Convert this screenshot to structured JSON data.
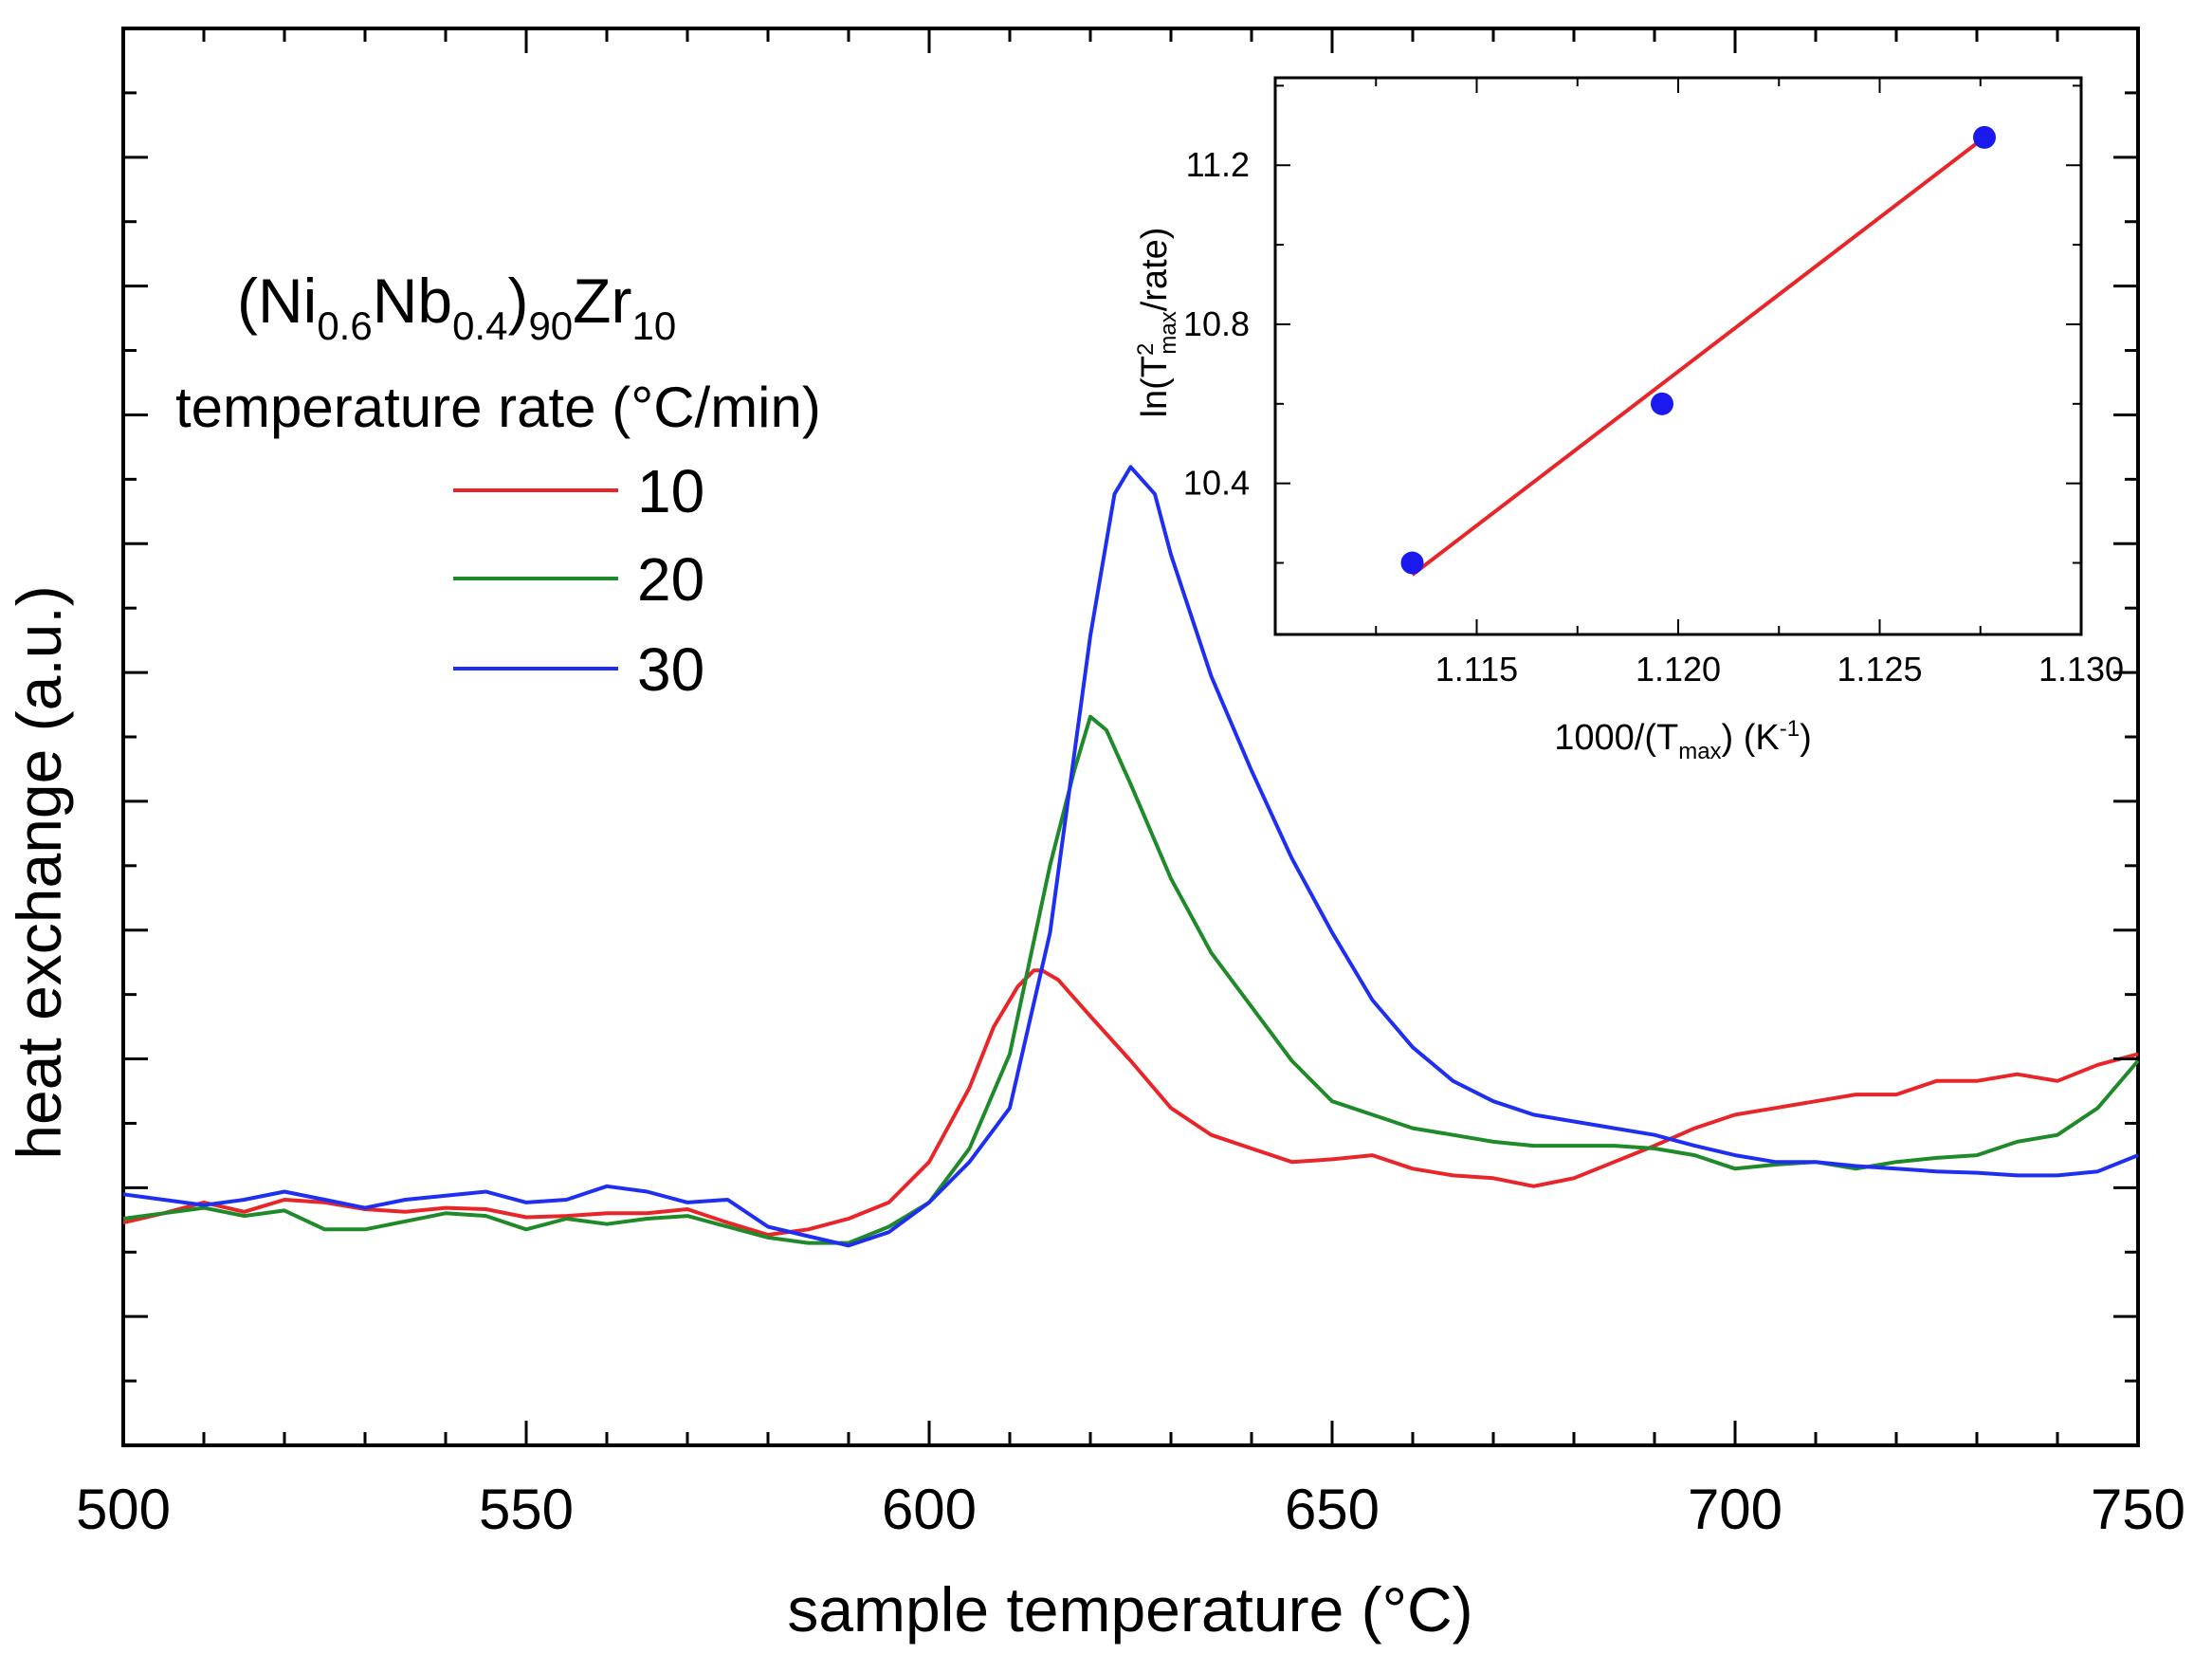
{
  "chart_data": [
    {
      "type": "line",
      "title": "",
      "xlabel": "sample temperature (°C)",
      "ylabel": "heat exchange (a.u.)",
      "xlim": [
        500,
        750
      ],
      "ylim": [
        -0.05,
        1.0
      ],
      "x_ticks": [
        500,
        550,
        600,
        650,
        700,
        750
      ],
      "x_tick_labels": [
        "500",
        "550",
        "600",
        "650",
        "700",
        "750"
      ],
      "y_tick_labels_shown": false,
      "legend": {
        "placement": "top-left",
        "composition": {
          "base1": "(Ni",
          "sub1": "0.6",
          "base2": "Nb",
          "sub2": "0.4",
          "base3": ")",
          "sub3": "90",
          "base4": "Zr",
          "sub4": "10"
        },
        "heading": "temperature rate (°C/min)"
      },
      "series": [
        {
          "name": "10",
          "color": "#e8262a",
          "x": [
            500,
            505,
            510,
            515,
            520,
            525,
            530,
            535,
            540,
            545,
            550,
            555,
            560,
            565,
            570,
            575,
            580,
            585,
            590,
            595,
            600,
            605,
            608,
            611,
            613,
            614,
            616,
            620,
            625,
            630,
            635,
            640,
            645,
            650,
            655,
            660,
            665,
            670,
            675,
            680,
            685,
            690,
            695,
            700,
            705,
            710,
            715,
            720,
            725,
            730,
            735,
            740,
            745,
            750
          ],
          "y": [
            0.115,
            0.122,
            0.13,
            0.123,
            0.132,
            0.13,
            0.125,
            0.123,
            0.126,
            0.125,
            0.119,
            0.12,
            0.122,
            0.122,
            0.125,
            0.115,
            0.106,
            0.11,
            0.118,
            0.13,
            0.16,
            0.215,
            0.26,
            0.29,
            0.302,
            0.302,
            0.295,
            0.268,
            0.235,
            0.2,
            0.18,
            0.17,
            0.16,
            0.162,
            0.165,
            0.155,
            0.15,
            0.148,
            0.142,
            0.148,
            0.16,
            0.172,
            0.185,
            0.195,
            0.2,
            0.205,
            0.21,
            0.21,
            0.22,
            0.22,
            0.225,
            0.22,
            0.232,
            0.24
          ]
        },
        {
          "name": "20",
          "color": "#1f8a2a",
          "x": [
            500,
            505,
            510,
            515,
            520,
            525,
            530,
            535,
            540,
            545,
            550,
            555,
            560,
            565,
            570,
            575,
            580,
            585,
            590,
            595,
            600,
            605,
            610,
            615,
            618,
            620,
            622,
            625,
            630,
            635,
            640,
            645,
            650,
            655,
            660,
            665,
            670,
            675,
            680,
            685,
            690,
            695,
            700,
            705,
            710,
            715,
            720,
            725,
            730,
            735,
            740,
            745,
            750
          ],
          "y": [
            0.118,
            0.122,
            0.126,
            0.12,
            0.124,
            0.11,
            0.11,
            0.116,
            0.122,
            0.12,
            0.11,
            0.118,
            0.114,
            0.118,
            0.12,
            0.112,
            0.104,
            0.1,
            0.1,
            0.112,
            0.13,
            0.17,
            0.24,
            0.38,
            0.45,
            0.49,
            0.48,
            0.44,
            0.37,
            0.315,
            0.275,
            0.235,
            0.205,
            0.195,
            0.185,
            0.18,
            0.175,
            0.172,
            0.172,
            0.172,
            0.17,
            0.165,
            0.155,
            0.158,
            0.16,
            0.155,
            0.16,
            0.163,
            0.165,
            0.175,
            0.18,
            0.2,
            0.235
          ]
        },
        {
          "name": "30",
          "color": "#1f2ff0",
          "x": [
            500,
            505,
            510,
            515,
            520,
            525,
            530,
            535,
            540,
            545,
            550,
            555,
            560,
            565,
            570,
            575,
            580,
            585,
            590,
            595,
            600,
            605,
            610,
            615,
            620,
            623,
            625,
            628,
            630,
            635,
            640,
            645,
            650,
            655,
            660,
            665,
            670,
            675,
            680,
            685,
            690,
            695,
            700,
            705,
            710,
            715,
            720,
            725,
            730,
            735,
            740,
            745,
            750
          ],
          "y": [
            0.136,
            0.132,
            0.128,
            0.132,
            0.138,
            0.132,
            0.126,
            0.132,
            0.135,
            0.138,
            0.13,
            0.132,
            0.142,
            0.138,
            0.13,
            0.132,
            0.112,
            0.105,
            0.098,
            0.108,
            0.13,
            0.16,
            0.2,
            0.33,
            0.55,
            0.655,
            0.675,
            0.655,
            0.61,
            0.52,
            0.45,
            0.385,
            0.33,
            0.28,
            0.245,
            0.22,
            0.205,
            0.195,
            0.19,
            0.185,
            0.18,
            0.172,
            0.165,
            0.16,
            0.16,
            0.157,
            0.155,
            0.153,
            0.152,
            0.15,
            0.15,
            0.153,
            0.165
          ]
        }
      ]
    },
    {
      "type": "scatter",
      "title": "",
      "xlabel": {
        "base": "1000/(T",
        "sub": "max",
        "close": ") (K",
        "sup": "-1",
        "end": ")"
      },
      "ylabel": {
        "base": "ln(T",
        "sup": "2",
        "sub": "max",
        "end": "/rate)"
      },
      "xlim": [
        1.11,
        1.13
      ],
      "ylim": [
        10.02,
        11.42
      ],
      "x_ticks": [
        1.115,
        1.12,
        1.125,
        1.13
      ],
      "x_tick_labels": [
        "1.115",
        "1.120",
        "1.125",
        "1.130"
      ],
      "y_ticks": [
        10.4,
        10.8,
        11.2
      ],
      "y_tick_labels": [
        "10.4",
        "10.8",
        "11.2"
      ],
      "points": {
        "color": "#1a1aee",
        "x": [
          1.1134,
          1.1196,
          1.1276
        ],
        "y": [
          10.2,
          10.6,
          11.27
        ]
      },
      "fit_line": {
        "color": "#e8262a",
        "x": [
          1.1134,
          1.1276
        ],
        "y": [
          10.17,
          11.27
        ]
      }
    }
  ]
}
